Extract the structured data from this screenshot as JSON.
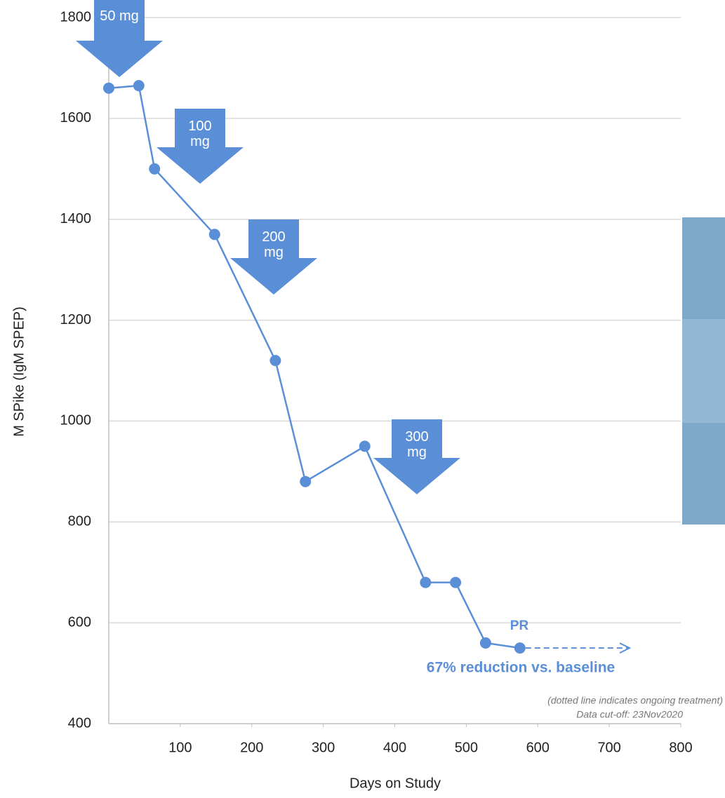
{
  "chart_data": {
    "type": "line",
    "xlabel": "Days on Study",
    "ylabel": "M SPike (IgM SPEP)",
    "x": [
      0,
      42,
      64,
      148,
      233,
      275,
      358,
      443,
      485,
      527,
      575
    ],
    "series": [
      {
        "name": "M Spike",
        "color": "#5a8fd8",
        "values": [
          1660,
          1665,
          1500,
          1370,
          1120,
          880,
          950,
          680,
          680,
          560,
          550
        ]
      }
    ],
    "xlim": [
      0,
      800
    ],
    "xticks": [
      100,
      200,
      300,
      400,
      500,
      600,
      700,
      800
    ],
    "ylim": [
      400,
      1800
    ],
    "yticks": [
      400,
      600,
      800,
      1000,
      1200,
      1400,
      1600,
      1800
    ],
    "grid": true,
    "dose_annotations": [
      "50 mg",
      "100 mg",
      "200 mg",
      "300 mg"
    ],
    "response_label": "PR",
    "reduction_label": "67% reduction vs. baseline",
    "notes": [
      "(dotted line indicates ongoing treatment)",
      "Data cut-off: 23Nov2020"
    ]
  }
}
